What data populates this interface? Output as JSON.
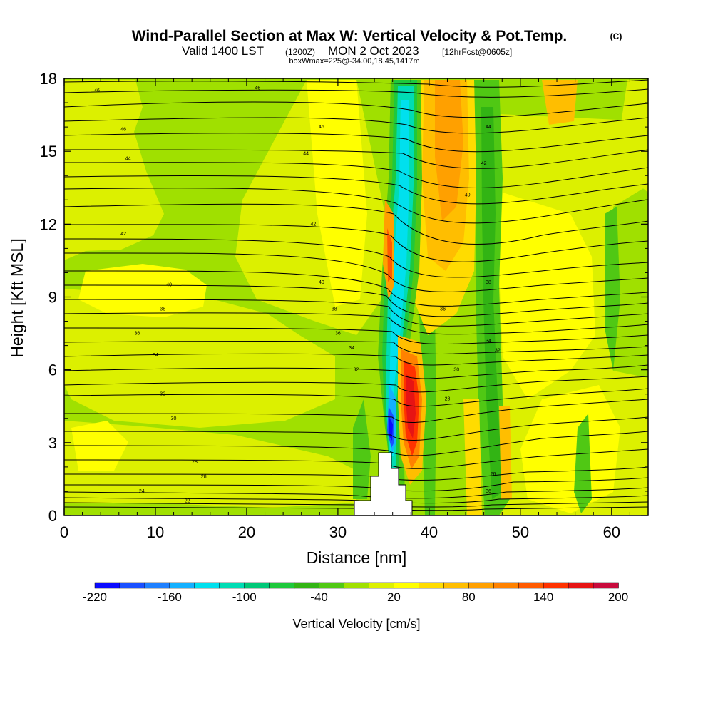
{
  "chart_data": {
    "type": "contour",
    "title": "Wind-Parallel Section at Max W: Vertical Velocity & Pot.Temp.",
    "title_mark": "(C)",
    "subtitle_main_left": "Valid 1400 LST",
    "subtitle_small_1": "(1200Z)",
    "subtitle_main_right": "MON 2 Oct 2023",
    "subtitle_small_2": "[12hrFcst@0605z]",
    "subtitle_line3": "boxWmax=225@-34.00,18.45,1417m",
    "xlabel": "Distance [nm]",
    "ylabel": "Height [Kft MSL]",
    "xlim": [
      0,
      64
    ],
    "ylim": [
      0,
      18
    ],
    "x_ticks": [
      "0",
      "10",
      "20",
      "30",
      "40",
      "50",
      "60"
    ],
    "y_ticks": [
      "0",
      "3",
      "6",
      "9",
      "12",
      "15",
      "18"
    ],
    "colorbar": {
      "label": "Vertical Velocity [cm/s]",
      "tick_labels": [
        "-220",
        "-160",
        "-100",
        "-40",
        "20",
        "80",
        "140",
        "200"
      ],
      "colors": [
        "#0a0aff",
        "#1a50ff",
        "#1e80ff",
        "#14b0ff",
        "#00e0ee",
        "#00dcb4",
        "#00c878",
        "#1ec83c",
        "#32b414",
        "#50c814",
        "#a0e000",
        "#dcf000",
        "#ffff00",
        "#ffdc00",
        "#ffbe00",
        "#ffa000",
        "#ff8200",
        "#ff5a00",
        "#ff3200",
        "#e61414",
        "#c80a3c"
      ]
    },
    "contour_labels": [
      "46",
      "46",
      "46",
      "46",
      "44",
      "44",
      "44",
      "42",
      "42",
      "42",
      "40",
      "40",
      "40",
      "38",
      "38",
      "38",
      "36",
      "36",
      "36",
      "34",
      "34",
      "34",
      "32",
      "32",
      "32",
      "30",
      "30",
      "28",
      "28",
      "28",
      "26",
      "24",
      "22",
      "36"
    ],
    "terrain_km_note": "terrain peak ~2.6 Kft near 35-36 nm"
  }
}
